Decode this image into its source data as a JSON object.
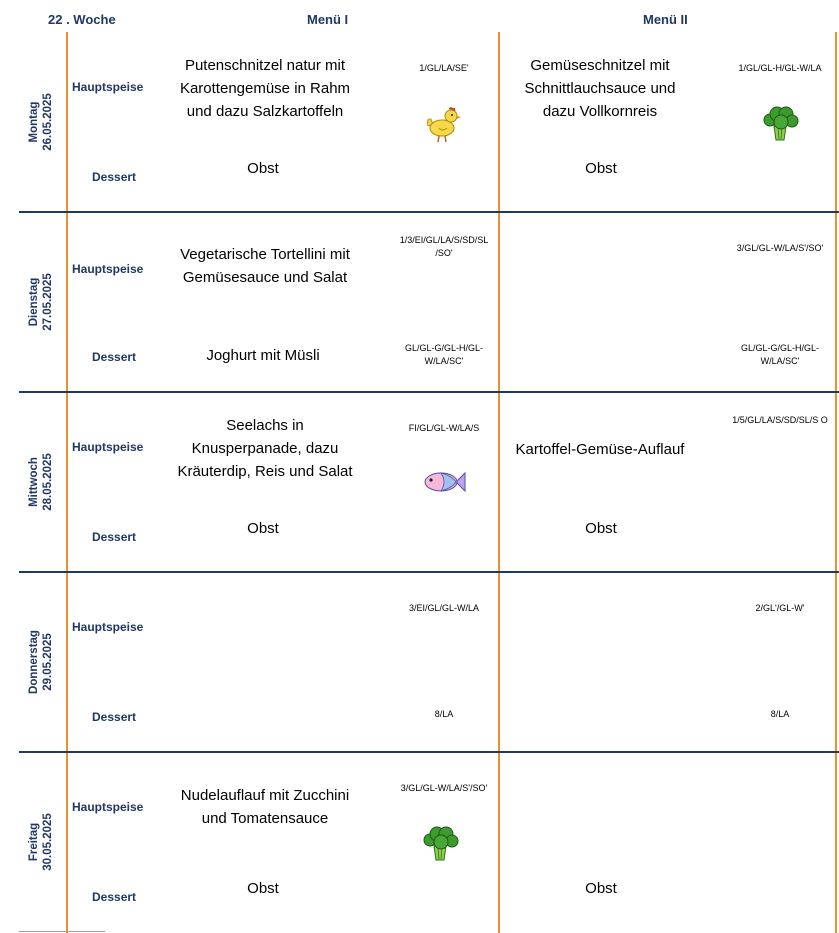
{
  "header": {
    "week": "22 . Woche",
    "menu1": "Menü I",
    "menu2": "Menü II"
  },
  "labels": {
    "main": "Hauptspeise",
    "dessert": "Dessert"
  },
  "icons": {
    "chicken": "chicken-icon",
    "broccoli": "broccoli-icon",
    "fish": "fish-icon"
  },
  "days": [
    {
      "name": "Montag",
      "date": "26.05.2025",
      "m1_main": [
        "Putenschnitzel natur mit",
        "Karottengemüse in Rahm",
        "und dazu Salzkartoffeln"
      ],
      "m1_main_allergens": "1/GL/LA/SE'",
      "m1_dessert": "Obst",
      "m1_dessert_allergens": "",
      "m2_main": [
        "Gemüseschnitzel mit",
        "Schnittlauchsauce und",
        "dazu  Vollkornreis"
      ],
      "m2_main_allergens": "1/GL/GL-H/GL-W/LA",
      "m2_dessert": "Obst",
      "m2_dessert_allergens": ""
    },
    {
      "name": "Dienstag",
      "date": "27.05.2025",
      "m1_main": [
        "Vegetarische Tortellini  mit",
        "Gemüsesauce und Salat"
      ],
      "m1_main_allergens": "1/3/EI/GL/LA/S/SD/SL /SO'",
      "m1_dessert": "Joghurt mit Müsli",
      "m1_dessert_allergens": "GL/GL-G/GL-H/GL- W/LA/SC'",
      "m2_main": [],
      "m2_main_allergens": "3/GL/GL-W/LA/S'/SO'",
      "m2_dessert": "",
      "m2_dessert_allergens": "GL/GL-G/GL-H/GL- W/LA/SC'"
    },
    {
      "name": "Mittwoch",
      "date": "28.05.2025",
      "m1_main": [
        "Seelachs in",
        "Knusperpanade,  dazu",
        "Kräuterdip,  Reis und Salat"
      ],
      "m1_main_allergens": "FI/GL/GL-W/LA/S",
      "m1_dessert": "Obst",
      "m1_dessert_allergens": "",
      "m2_main": [
        "Kartoffel-Gemüse-Auflauf"
      ],
      "m2_main_allergens": "1/5/GL/LA/S/SD/SL/S O",
      "m2_dessert": "Obst",
      "m2_dessert_allergens": ""
    },
    {
      "name": "Donnerstag",
      "date": "29.05.2025",
      "m1_main": [],
      "m1_main_allergens": "3/EI/GL/GL-W/LA",
      "m1_dessert": "",
      "m1_dessert_allergens": "8/LA",
      "m2_main": [],
      "m2_main_allergens": "2/GL'/GL-W'",
      "m2_dessert": "",
      "m2_dessert_allergens": "8/LA"
    },
    {
      "name": "Freitag",
      "date": "30.05.2025",
      "m1_main": [
        "Nudelauflauf mit Zucchini",
        "und Tomatensauce"
      ],
      "m1_main_allergens": "3/GL/GL-W/LA/S'/SO'",
      "m1_dessert": "Obst",
      "m1_dessert_allergens": "",
      "m2_main": [],
      "m2_main_allergens": "",
      "m2_dessert": "Obst",
      "m2_dessert_allergens": ""
    }
  ]
}
